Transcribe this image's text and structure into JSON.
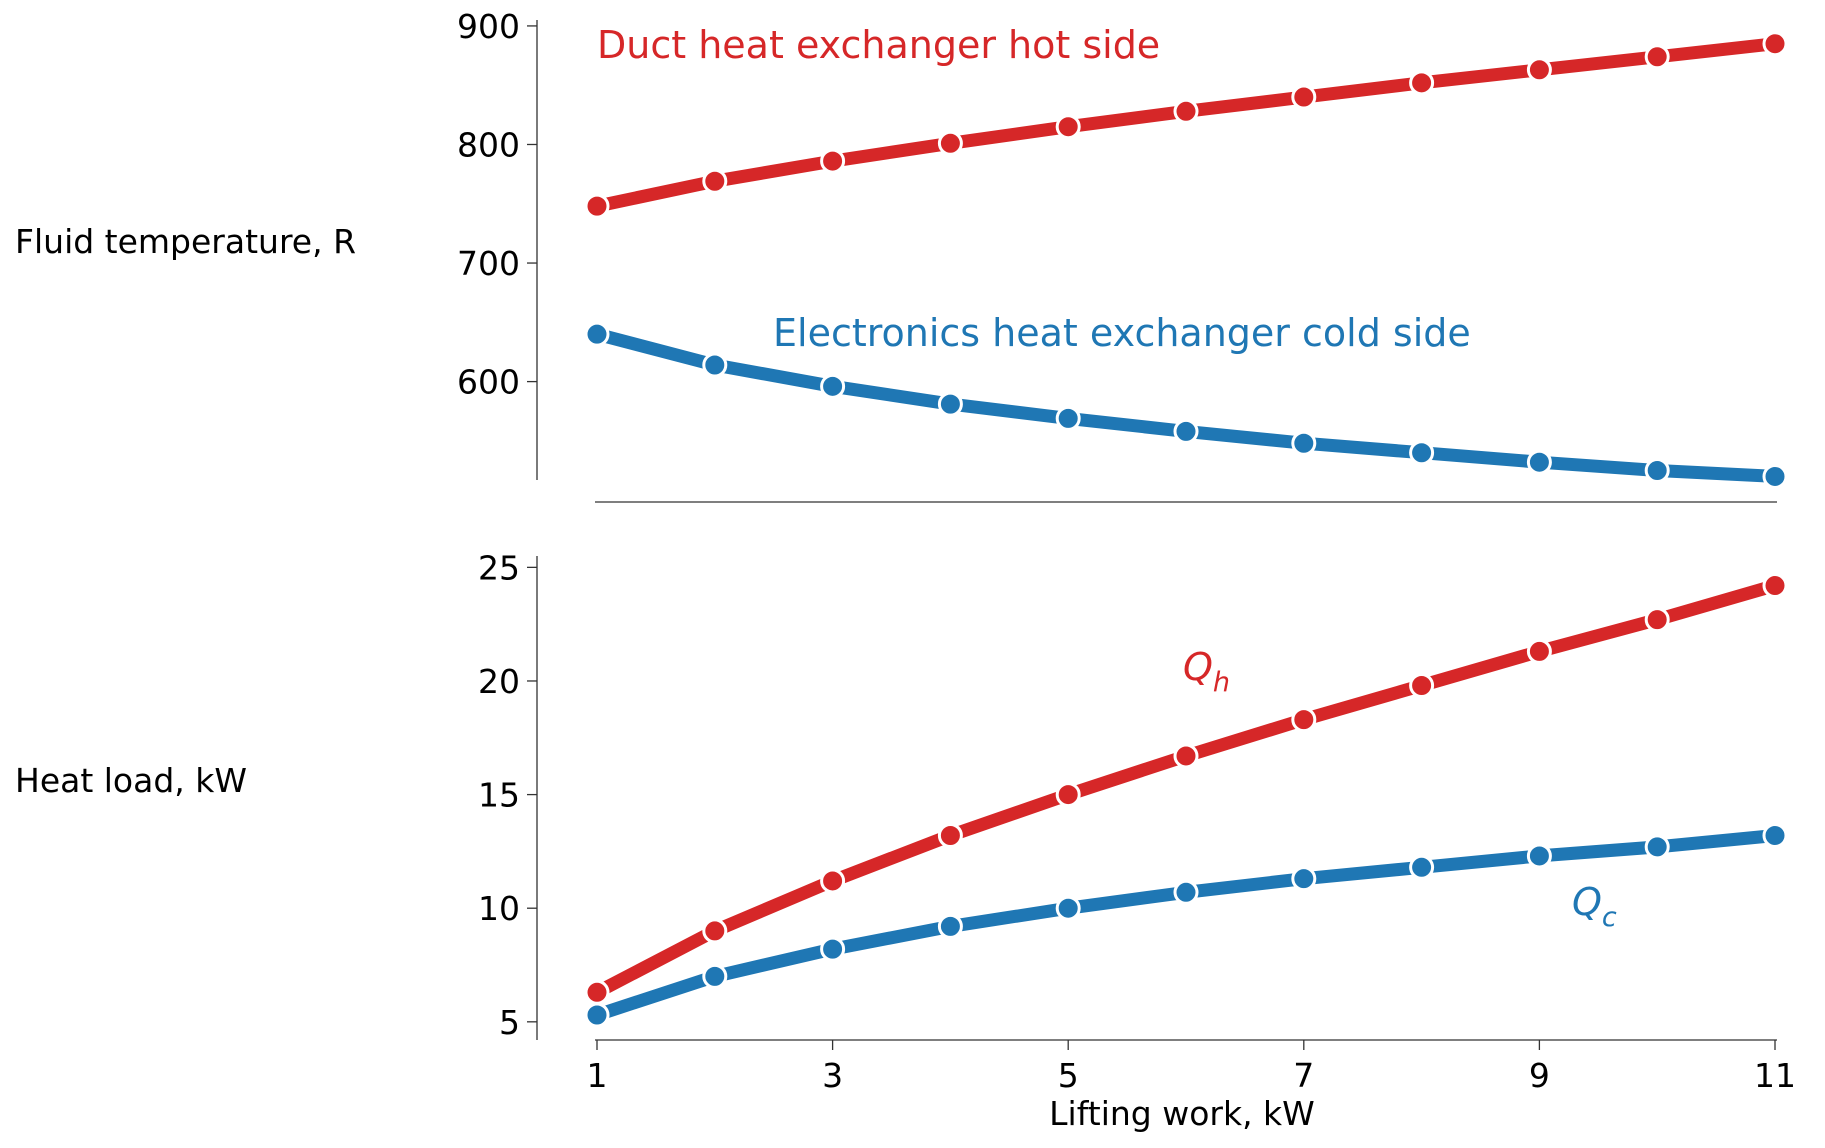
{
  "chart_data": [
    {
      "type": "line",
      "panel": "top",
      "ylabel": "Fluid temperature, R",
      "xlabel": "",
      "xlim": [
        1,
        11
      ],
      "ylim": [
        517,
        905
      ],
      "yticks": [
        600,
        700,
        800,
        900
      ],
      "x": [
        1,
        2,
        3,
        4,
        5,
        6,
        7,
        8,
        9,
        10,
        11
      ],
      "series": [
        {
          "name": "Duct heat exchanger hot side",
          "color": "#d62728",
          "values": [
            748,
            769,
            786,
            801,
            815,
            828,
            840,
            852,
            863,
            874,
            885
          ]
        },
        {
          "name": "Electronics heat exchanger cold side",
          "color": "#1f77b4",
          "values": [
            640,
            614,
            596,
            581,
            569,
            558,
            548,
            540,
            532,
            525,
            520
          ]
        }
      ],
      "grid": false,
      "legend": "inline"
    },
    {
      "type": "line",
      "panel": "bottom",
      "ylabel": "Heat load, kW",
      "xlabel": "Lifting work, kW",
      "xlim": [
        1,
        11
      ],
      "xticks": [
        1,
        3,
        5,
        7,
        9,
        11
      ],
      "ylim": [
        4.2,
        25.5
      ],
      "yticks": [
        5,
        10,
        15,
        20,
        25
      ],
      "x": [
        1,
        2,
        3,
        4,
        5,
        6,
        7,
        8,
        9,
        10,
        11
      ],
      "series": [
        {
          "name": "Q_h",
          "label_main": "Q",
          "label_sub": "h",
          "color": "#d62728",
          "values": [
            6.3,
            9.0,
            11.2,
            13.2,
            15.0,
            16.7,
            18.3,
            19.8,
            21.3,
            22.7,
            24.2
          ]
        },
        {
          "name": "Q_c",
          "label_main": "Q",
          "label_sub": "c",
          "color": "#1f77b4",
          "values": [
            5.3,
            7.0,
            8.2,
            9.2,
            10.0,
            10.7,
            11.3,
            11.8,
            12.3,
            12.7,
            13.2
          ]
        }
      ],
      "grid": false,
      "legend": "inline"
    }
  ]
}
